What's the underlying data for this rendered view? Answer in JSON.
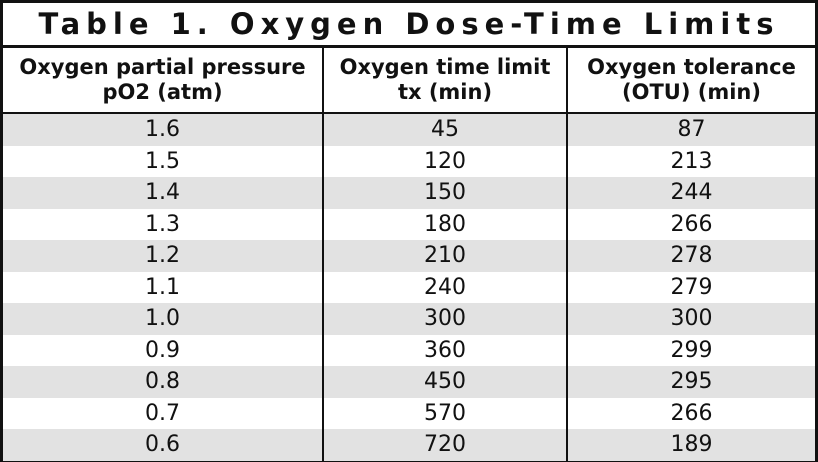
{
  "title": "Table 1. Oxygen Dose-Time Limits",
  "table": {
    "headers": [
      [
        "Oxygen partial pressure",
        "pO2 (atm)"
      ],
      [
        "Oxygen time limit",
        "tx (min)"
      ],
      [
        "Oxygen tolerance",
        "(OTU) (min)"
      ]
    ],
    "rows": [
      [
        "1.6",
        45,
        87
      ],
      [
        "1.5",
        120,
        213
      ],
      [
        "1.4",
        150,
        244
      ],
      [
        "1.3",
        180,
        266
      ],
      [
        "1.2",
        210,
        278
      ],
      [
        "1.1",
        240,
        279
      ],
      [
        "1.0",
        300,
        300
      ],
      [
        "0.9",
        360,
        299
      ],
      [
        "0.8",
        450,
        295
      ],
      [
        "0.7",
        570,
        266
      ],
      [
        "0.6",
        720,
        189
      ]
    ]
  }
}
